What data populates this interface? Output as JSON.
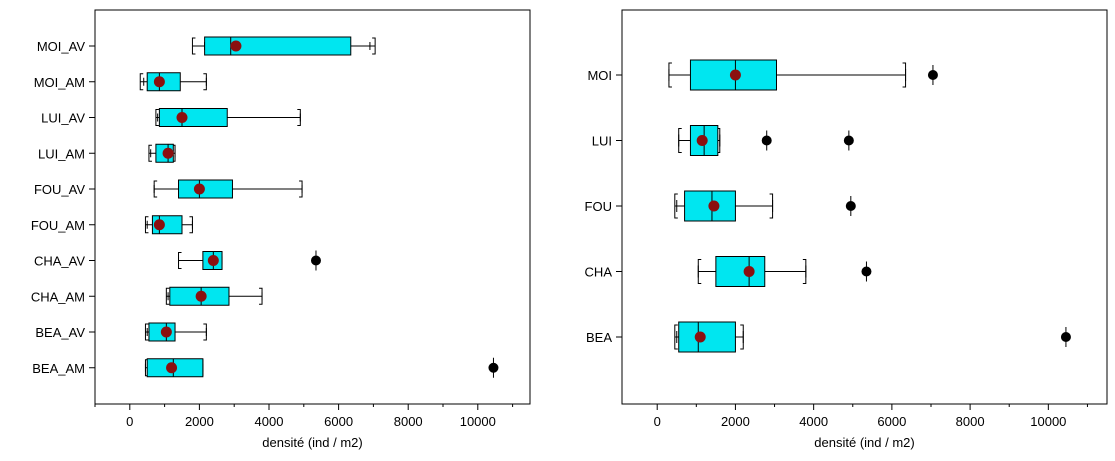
{
  "colors": {
    "box_fill": "#00e6f0",
    "mean_marker": "#8b0f0f",
    "outlier": "#000000",
    "frame": "#000000"
  },
  "chart_data": [
    {
      "type": "box",
      "orientation": "horizontal",
      "xlabel": "densité (ind / m2)",
      "xlim": [
        -1000,
        11500
      ],
      "xticks": [
        0,
        2000,
        4000,
        6000,
        8000,
        10000
      ],
      "xtick_labels": [
        "0",
        "2000",
        "4000",
        "6000",
        "8000",
        "10000"
      ],
      "grid": false,
      "categories": [
        "MOI_AV",
        "MOI_AM",
        "LUI_AV",
        "LUI_AM",
        "FOU_AV",
        "FOU_AM",
        "CHA_AV",
        "CHA_AM",
        "BEA_AV",
        "BEA_AM"
      ],
      "boxes": [
        {
          "label": "MOI_AV",
          "cap_low": 1800,
          "whisker_low": 2150,
          "q1": 2150,
          "median": 2900,
          "q3": 6350,
          "whisker_high": 6900,
          "cap_high": 7050,
          "mean": 3050,
          "outliers": []
        },
        {
          "label": "MOI_AM",
          "cap_low": 300,
          "whisker_low": 400,
          "q1": 500,
          "median": 850,
          "q3": 1450,
          "whisker_high": 2200,
          "cap_high": 2200,
          "mean": 850,
          "outliers": []
        },
        {
          "label": "LUI_AV",
          "cap_low": 750,
          "whisker_low": 800,
          "q1": 850,
          "median": 1500,
          "q3": 2800,
          "whisker_high": 4900,
          "cap_high": 4900,
          "mean": 1500,
          "outliers": []
        },
        {
          "label": "LUI_AM",
          "cap_low": 550,
          "whisker_low": 600,
          "q1": 750,
          "median": 1100,
          "q3": 1250,
          "whisker_high": 1300,
          "cap_high": 1300,
          "mean": 1100,
          "outliers": []
        },
        {
          "label": "FOU_AV",
          "cap_low": 700,
          "whisker_low": 700,
          "q1": 1400,
          "median": 2000,
          "q3": 2950,
          "whisker_high": 4950,
          "cap_high": 4950,
          "mean": 2000,
          "outliers": []
        },
        {
          "label": "FOU_AM",
          "cap_low": 450,
          "whisker_low": 500,
          "q1": 650,
          "median": 850,
          "q3": 1500,
          "whisker_high": 1800,
          "cap_high": 1800,
          "mean": 850,
          "outliers": []
        },
        {
          "label": "CHA_AV",
          "cap_low": 1400,
          "whisker_low": 1400,
          "q1": 2100,
          "median": 2400,
          "q3": 2650,
          "whisker_high": 2650,
          "cap_high": 2650,
          "mean": 2400,
          "outliers": [
            5350
          ]
        },
        {
          "label": "CHA_AM",
          "cap_low": 1050,
          "whisker_low": 1100,
          "q1": 1150,
          "median": 2050,
          "q3": 2850,
          "whisker_high": 3800,
          "cap_high": 3800,
          "mean": 2050,
          "outliers": []
        },
        {
          "label": "BEA_AV",
          "cap_low": 450,
          "whisker_low": 500,
          "q1": 550,
          "median": 1050,
          "q3": 1300,
          "whisker_high": 2200,
          "cap_high": 2200,
          "mean": 1050,
          "outliers": []
        },
        {
          "label": "BEA_AM",
          "cap_low": 450,
          "whisker_low": 450,
          "q1": 500,
          "median": 1250,
          "q3": 2100,
          "whisker_high": 2100,
          "cap_high": 2100,
          "mean": 1200,
          "outliers": [
            10450
          ]
        }
      ]
    },
    {
      "type": "box",
      "orientation": "horizontal",
      "xlabel": "densité (ind / m2)",
      "xlim": [
        -900,
        11500
      ],
      "xticks": [
        0,
        2000,
        4000,
        6000,
        8000,
        10000
      ],
      "xtick_labels": [
        "0",
        "2000",
        "4000",
        "6000",
        "8000",
        "10000"
      ],
      "grid": false,
      "categories": [
        "MOI",
        "LUI",
        "FOU",
        "CHA",
        "BEA"
      ],
      "boxes": [
        {
          "label": "MOI",
          "cap_low": 300,
          "whisker_low": 300,
          "q1": 850,
          "median": 2000,
          "q3": 3050,
          "whisker_high": 6350,
          "cap_high": 6350,
          "mean": 2000,
          "outliers": [
            7050
          ]
        },
        {
          "label": "LUI",
          "cap_low": 550,
          "whisker_low": 550,
          "q1": 850,
          "median": 1200,
          "q3": 1550,
          "whisker_high": 1600,
          "cap_high": 1600,
          "mean": 1150,
          "outliers": [
            2800,
            4900
          ]
        },
        {
          "label": "FOU",
          "cap_low": 450,
          "whisker_low": 500,
          "q1": 700,
          "median": 1400,
          "q3": 2000,
          "whisker_high": 2950,
          "cap_high": 2950,
          "mean": 1450,
          "outliers": [
            4950
          ]
        },
        {
          "label": "CHA",
          "cap_low": 1050,
          "whisker_low": 1050,
          "q1": 1500,
          "median": 2350,
          "q3": 2750,
          "whisker_high": 3800,
          "cap_high": 3800,
          "mean": 2350,
          "outliers": [
            5350
          ]
        },
        {
          "label": "BEA",
          "cap_low": 450,
          "whisker_low": 500,
          "q1": 550,
          "median": 1050,
          "q3": 2000,
          "whisker_high": 2200,
          "cap_high": 2200,
          "mean": 1100,
          "outliers": [
            10450
          ]
        }
      ]
    }
  ]
}
